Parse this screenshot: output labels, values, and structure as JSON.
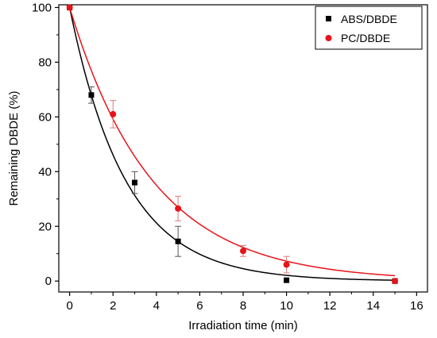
{
  "chart_data": {
    "type": "scatter",
    "title": "",
    "xlabel": "Irradiation time (min)",
    "ylabel": "Remaining DBDE (%)",
    "xlim": [
      -0.5,
      16.5
    ],
    "ylim": [
      -4,
      101
    ],
    "xticks": [
      "0",
      "2",
      "4",
      "6",
      "8",
      "10",
      "12",
      "14",
      "16"
    ],
    "yticks": [
      "0",
      "20",
      "40",
      "60",
      "80",
      "100"
    ],
    "grid": false,
    "legend_position": "top-right",
    "series": [
      {
        "name": "ABS/DBDE",
        "color": "#000000",
        "marker": "square",
        "x": [
          0,
          1,
          3,
          5,
          10,
          15
        ],
        "y": [
          100,
          68,
          36,
          14.5,
          0.3,
          0
        ],
        "err": [
          0,
          3,
          4,
          5.5,
          0,
          0
        ],
        "fit_k": 0.387
      },
      {
        "name": "PC/DBDE",
        "color": "#e8131a",
        "marker": "circle",
        "x": [
          0,
          2,
          5,
          8,
          10,
          15
        ],
        "y": [
          100,
          61,
          26.5,
          11,
          6,
          0
        ],
        "err": [
          0,
          5,
          4.5,
          2,
          3,
          0
        ],
        "fit_k": 0.262
      }
    ]
  }
}
